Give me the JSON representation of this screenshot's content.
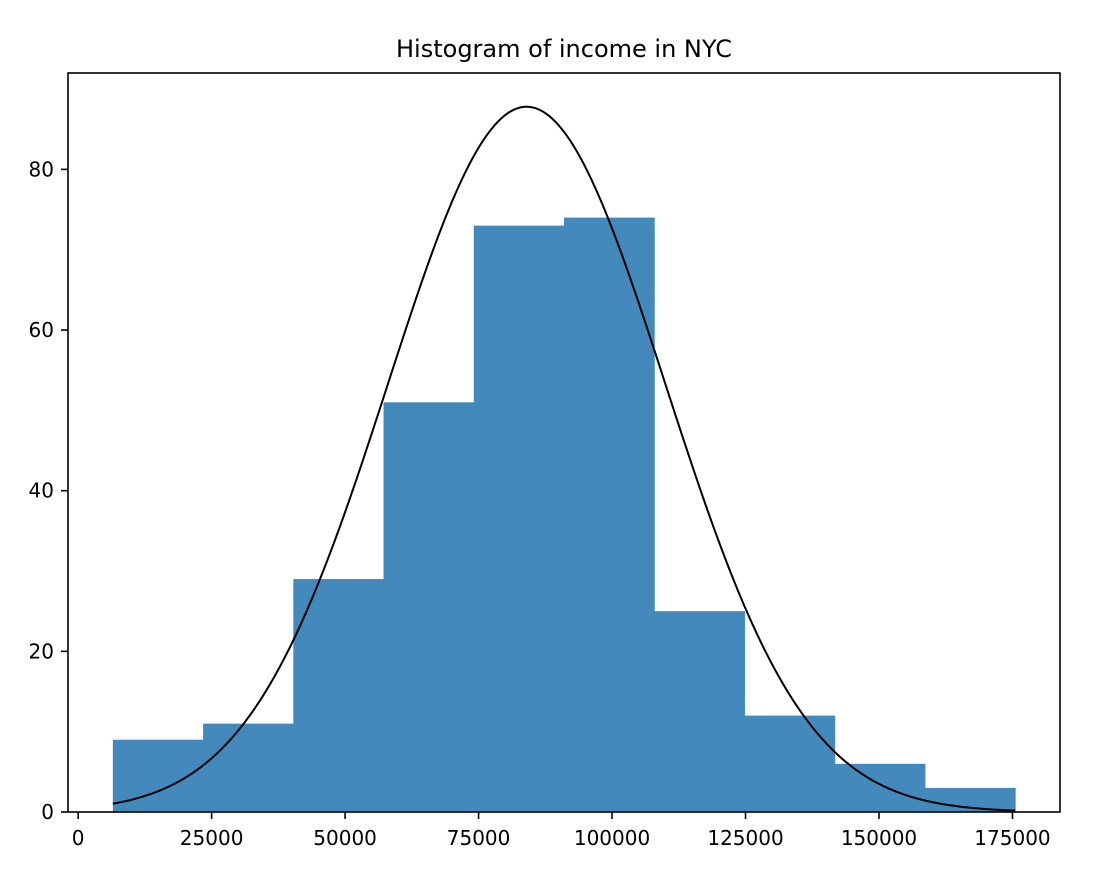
{
  "chart_data": {
    "type": "bar",
    "title": "Histogram of income in NYC",
    "xlabel": "",
    "ylabel": "",
    "bins": [
      {
        "x0": 6500,
        "x1": 23400,
        "count": 9
      },
      {
        "x0": 23400,
        "x1": 40300,
        "count": 11
      },
      {
        "x0": 40300,
        "x1": 57200,
        "count": 29
      },
      {
        "x0": 57200,
        "x1": 74100,
        "count": 51
      },
      {
        "x0": 74100,
        "x1": 91000,
        "count": 73
      },
      {
        "x0": 91000,
        "x1": 107900,
        "count": 74
      },
      {
        "x0": 107900,
        "x1": 124800,
        "count": 25
      },
      {
        "x0": 124800,
        "x1": 141700,
        "count": 12
      },
      {
        "x0": 141700,
        "x1": 158600,
        "count": 6
      },
      {
        "x0": 158600,
        "x1": 175500,
        "count": 3
      }
    ],
    "curve": {
      "type": "normal",
      "mean": 84000,
      "sd": 26000,
      "peak": 87.8,
      "x_start": 6500,
      "x_end": 175500,
      "color": "#000000"
    },
    "xlim": [
      -1900,
      183900
    ],
    "ylim": [
      0,
      92
    ],
    "xticks": [
      "0",
      "25000",
      "50000",
      "75000",
      "100000",
      "125000",
      "150000",
      "175000"
    ],
    "yticks": [
      "0",
      "20",
      "40",
      "60",
      "80"
    ],
    "bar_color": "#4389bc",
    "grid": false
  }
}
